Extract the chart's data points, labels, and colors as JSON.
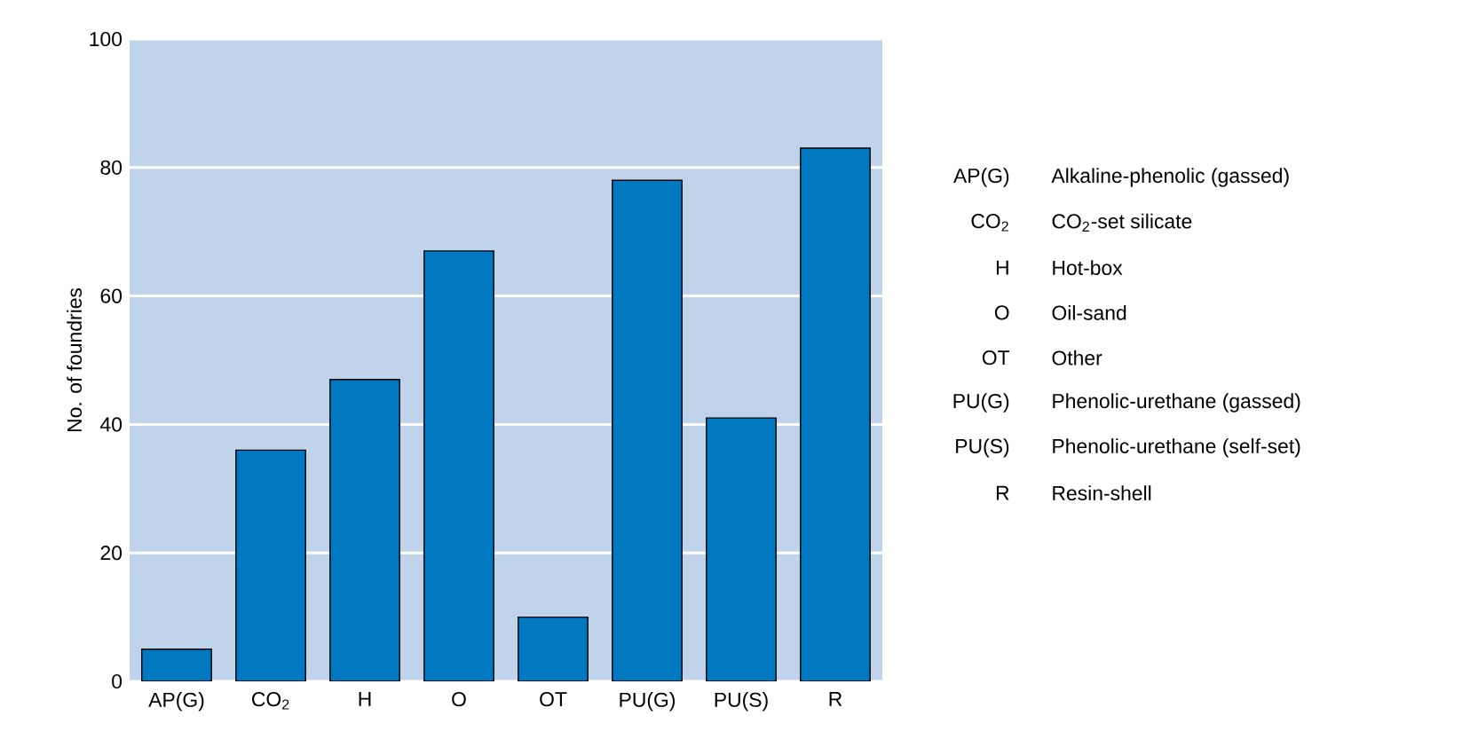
{
  "chart_data": {
    "type": "bar",
    "ylabel": "No. of foundries",
    "categories": [
      "AP(G)",
      "CO$_{2}$",
      "H",
      "O",
      "OT",
      "PU(G)",
      "PU(S)",
      "R"
    ],
    "values": [
      5,
      36,
      47,
      67,
      10,
      78,
      41,
      83
    ],
    "color": "#0079c1",
    "ylim": [
      0,
      100
    ],
    "yticks": [
      0,
      20,
      40,
      60,
      80,
      100
    ],
    "grid": "y",
    "annotations": [
      "Alkaline-phenolic (gassed)",
      "CO$_{2}$-set silicate",
      "Hot-box",
      "Oil-sand",
      "Other",
      "Phenolic-urethane (gassed)",
      "Phenolic-urethane (self-set)",
      "Resin-shell"
    ]
  }
}
